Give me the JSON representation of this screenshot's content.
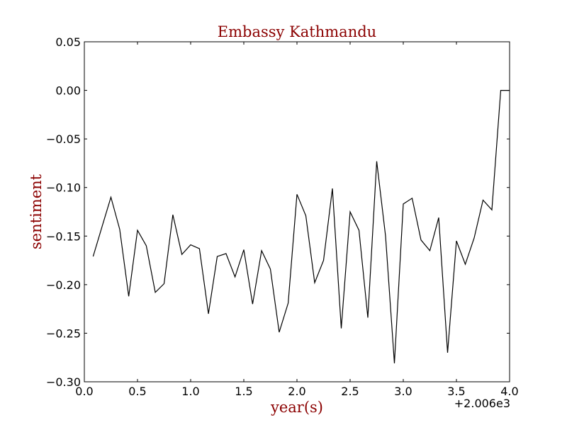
{
  "chart_data": {
    "type": "line",
    "title": "Embassy Kathmandu",
    "xlabel": "year(s)",
    "ylabel": "sentiment",
    "x_offset_label": "+2.006e3",
    "xlim": [
      0.0,
      4.0
    ],
    "ylim": [
      -0.3,
      0.05
    ],
    "x_ticks": [
      0.0,
      0.5,
      1.0,
      1.5,
      2.0,
      2.5,
      3.0,
      3.5,
      4.0
    ],
    "x_tick_labels": [
      "0.0",
      "0.5",
      "1.0",
      "1.5",
      "2.0",
      "2.5",
      "3.0",
      "3.5",
      "4.0"
    ],
    "y_ticks": [
      0.05,
      0.0,
      -0.05,
      -0.1,
      -0.15,
      -0.2,
      -0.25,
      -0.3
    ],
    "y_tick_labels": [
      "0.05",
      "0.00",
      "−0.05",
      "−0.10",
      "−0.15",
      "−0.20",
      "−0.25",
      "−0.30"
    ],
    "grid": false,
    "line_color": "#000000",
    "series": [
      {
        "x": [
          0.083,
          0.167,
          0.25,
          0.333,
          0.417,
          0.5,
          0.583,
          0.667,
          0.75,
          0.833,
          0.917,
          1.0,
          1.083,
          1.167,
          1.25,
          1.333,
          1.417,
          1.5,
          1.583,
          1.667,
          1.75,
          1.833,
          1.917,
          2.0,
          2.083,
          2.167,
          2.25,
          2.333,
          2.417,
          2.5,
          2.583,
          2.667,
          2.75,
          2.833,
          2.917,
          3.0,
          3.083,
          3.167,
          3.25,
          3.333,
          3.417,
          3.5,
          3.583,
          3.667,
          3.75,
          3.833,
          3.917,
          4.0
        ],
        "y": [
          -0.171,
          -0.14,
          -0.11,
          -0.143,
          -0.212,
          -0.144,
          -0.16,
          -0.208,
          -0.199,
          -0.128,
          -0.169,
          -0.159,
          -0.163,
          -0.23,
          -0.171,
          -0.168,
          -0.192,
          -0.164,
          -0.22,
          -0.165,
          -0.184,
          -0.249,
          -0.219,
          -0.107,
          -0.129,
          -0.198,
          -0.175,
          -0.101,
          -0.245,
          -0.125,
          -0.144,
          -0.234,
          -0.073,
          -0.15,
          -0.281,
          -0.117,
          -0.111,
          -0.154,
          -0.165,
          -0.131,
          -0.27,
          -0.155,
          -0.179,
          -0.152,
          -0.113,
          -0.123,
          0.0,
          0.0
        ]
      }
    ]
  }
}
